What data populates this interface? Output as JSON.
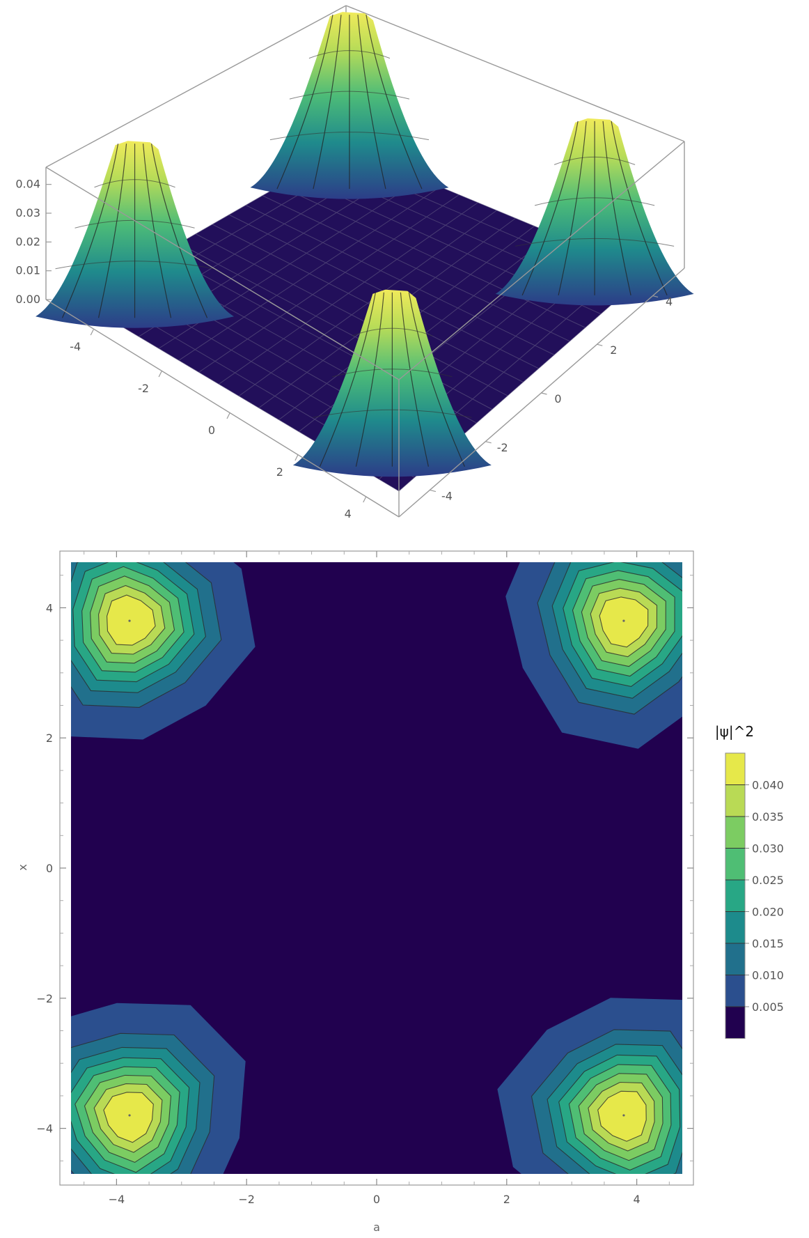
{
  "chart_data": [
    {
      "type": "surface",
      "title": "",
      "x_ticks": [
        "-4",
        "-2",
        "0",
        "2",
        "4"
      ],
      "y_ticks": [
        "4",
        "2",
        "0",
        "-2",
        "-4"
      ],
      "z_ticks": [
        "0.04",
        "0.03",
        "0.02",
        "0.01",
        "0.00"
      ],
      "xlim": [
        -4.7,
        4.7
      ],
      "ylim": [
        -4.7,
        4.7
      ],
      "zlim": [
        0,
        0.045
      ],
      "colormap": [
        "#21014f",
        "#2b3a86",
        "#21708c",
        "#28988a",
        "#4fbe74",
        "#9fd453",
        "#e6e84a"
      ],
      "peaks": [
        {
          "x": -3.8,
          "y": 3.8,
          "value": 0.045
        },
        {
          "x": 3.8,
          "y": 3.8,
          "value": 0.045
        },
        {
          "x": -3.8,
          "y": -3.8,
          "value": 0.045
        },
        {
          "x": 3.8,
          "y": -3.8,
          "value": 0.045
        }
      ]
    },
    {
      "type": "contour",
      "title": "",
      "xlabel": "a",
      "ylabel": "x",
      "xlim": [
        -4.7,
        4.7
      ],
      "ylim": [
        -4.7,
        4.7
      ],
      "x_ticks": [
        "-4",
        "-2",
        "0",
        "2",
        "4"
      ],
      "y_ticks": [
        "4",
        "2",
        "0",
        "-2",
        "-4"
      ],
      "legend_title": "|ψ|^2",
      "legend_placement": "right",
      "levels": [
        0.005,
        0.01,
        0.015,
        0.02,
        0.025,
        0.03,
        0.035,
        0.04
      ],
      "level_labels": [
        "0.040",
        "0.035",
        "0.030",
        "0.025",
        "0.020",
        "0.015",
        "0.010",
        "0.005"
      ],
      "band_colors": [
        "#21014f",
        "#2b4f8e",
        "#21708c",
        "#1d8b8c",
        "#28a785",
        "#4fbe74",
        "#7ccc62",
        "#b9da55",
        "#e6e84a"
      ],
      "max_value": 0.045,
      "peaks": [
        {
          "x": -3.8,
          "y": 3.8
        },
        {
          "x": 3.8,
          "y": 3.8
        },
        {
          "x": -3.8,
          "y": -3.8
        },
        {
          "x": 3.8,
          "y": -3.8
        }
      ]
    }
  ]
}
